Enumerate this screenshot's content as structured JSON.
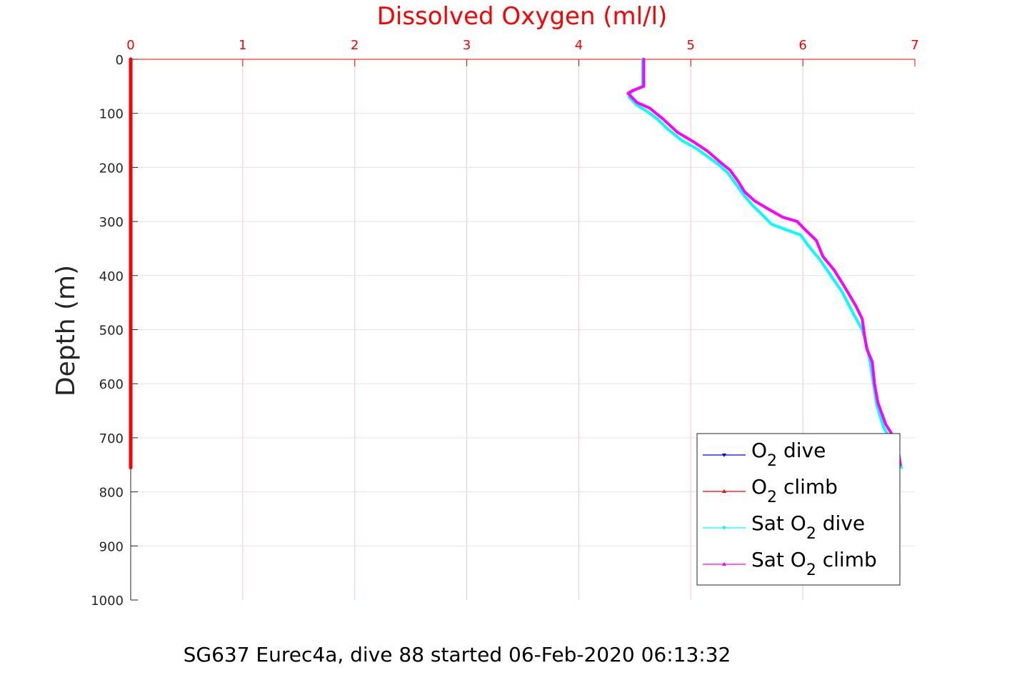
{
  "footer": "SG637 Eurec4a, dive 88 started 06-Feb-2020 06:13:32",
  "chart_data": {
    "type": "line",
    "title": "Dissolved Oxygen (ml/l)",
    "xlabel": "Dissolved Oxygen (ml/l)",
    "ylabel": "Depth (m)",
    "xlim": [
      0,
      7
    ],
    "ylim": [
      0,
      1000
    ],
    "y_reversed": true,
    "x_axis_position": "top",
    "x_ticks": [
      "0",
      "1",
      "2",
      "3",
      "4",
      "5",
      "6",
      "7"
    ],
    "y_ticks": [
      "0",
      "100",
      "200",
      "300",
      "400",
      "500",
      "600",
      "700",
      "800",
      "900",
      "1000"
    ],
    "grid": true,
    "legend_position": "bottom-right",
    "colors": {
      "axis_x": "#ff0000",
      "axis_y": "#262626",
      "grid": "#f2c6d2"
    },
    "series": [
      {
        "name": "O2 dive",
        "legend": {
          "pre": "O",
          "sub": "2",
          "post": " dive"
        },
        "color": "#0000ff",
        "marker": "triangle-down",
        "points": [
          [
            0,
            0
          ],
          [
            0,
            755
          ]
        ]
      },
      {
        "name": "O2 climb",
        "legend": {
          "pre": "O",
          "sub": "2",
          "post": " climb"
        },
        "color": "#ff0000",
        "marker": "triangle-up",
        "points": [
          [
            0,
            0
          ],
          [
            0,
            755
          ]
        ]
      },
      {
        "name": "Sat O2 dive",
        "legend": {
          "pre": "Sat O",
          "sub": "2",
          "post": " dive"
        },
        "color": "#00ffff",
        "marker": "triangle-down",
        "points": [
          [
            4.57,
            0
          ],
          [
            4.57,
            50
          ],
          [
            4.47,
            60
          ],
          [
            4.45,
            70
          ],
          [
            4.52,
            85
          ],
          [
            4.6,
            95
          ],
          [
            4.7,
            110
          ],
          [
            4.8,
            130
          ],
          [
            4.92,
            150
          ],
          [
            5.05,
            165
          ],
          [
            5.15,
            180
          ],
          [
            5.25,
            195
          ],
          [
            5.33,
            210
          ],
          [
            5.4,
            230
          ],
          [
            5.47,
            250
          ],
          [
            5.55,
            270
          ],
          [
            5.65,
            290
          ],
          [
            5.72,
            305
          ],
          [
            5.85,
            315
          ],
          [
            5.98,
            325
          ],
          [
            6.05,
            345
          ],
          [
            6.15,
            370
          ],
          [
            6.25,
            400
          ],
          [
            6.35,
            430
          ],
          [
            6.45,
            470
          ],
          [
            6.53,
            500
          ],
          [
            6.57,
            530
          ],
          [
            6.6,
            560
          ],
          [
            6.63,
            600
          ],
          [
            6.66,
            640
          ],
          [
            6.72,
            680
          ],
          [
            6.8,
            710
          ],
          [
            6.86,
            740
          ],
          [
            6.88,
            755
          ]
        ]
      },
      {
        "name": "Sat O2 climb",
        "legend": {
          "pre": "Sat O",
          "sub": "2",
          "post": " climb"
        },
        "color": "#ff00ff",
        "marker": "triangle-up",
        "points": [
          [
            4.58,
            0
          ],
          [
            4.58,
            50
          ],
          [
            4.48,
            58
          ],
          [
            4.44,
            63
          ],
          [
            4.52,
            80
          ],
          [
            4.63,
            90
          ],
          [
            4.75,
            110
          ],
          [
            4.88,
            135
          ],
          [
            5.02,
            152
          ],
          [
            5.15,
            170
          ],
          [
            5.25,
            188
          ],
          [
            5.35,
            205
          ],
          [
            5.42,
            225
          ],
          [
            5.48,
            245
          ],
          [
            5.57,
            262
          ],
          [
            5.7,
            278
          ],
          [
            5.82,
            292
          ],
          [
            5.95,
            300
          ],
          [
            6.02,
            315
          ],
          [
            6.12,
            335
          ],
          [
            6.18,
            365
          ],
          [
            6.28,
            390
          ],
          [
            6.37,
            420
          ],
          [
            6.47,
            455
          ],
          [
            6.53,
            480
          ],
          [
            6.55,
            510
          ],
          [
            6.57,
            535
          ],
          [
            6.62,
            560
          ],
          [
            6.64,
            600
          ],
          [
            6.67,
            635
          ],
          [
            6.74,
            675
          ],
          [
            6.8,
            695
          ],
          [
            6.85,
            720
          ],
          [
            6.87,
            750
          ]
        ]
      }
    ]
  }
}
